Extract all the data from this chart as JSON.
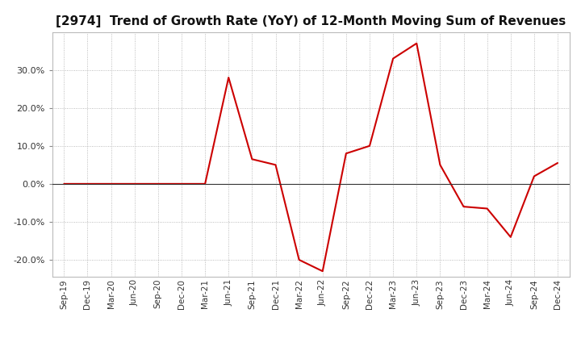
{
  "title": "[2974]  Trend of Growth Rate (YoY) of 12-Month Moving Sum of Revenues",
  "title_fontsize": 11,
  "line_color": "#cc0000",
  "background_color": "#ffffff",
  "plot_bg_color": "#ffffff",
  "grid_color": "#aaaaaa",
  "zero_line_color": "#333333",
  "labels": [
    "Sep-19",
    "Dec-19",
    "Mar-20",
    "Jun-20",
    "Sep-20",
    "Dec-20",
    "Mar-21",
    "Jun-21",
    "Sep-21",
    "Dec-21",
    "Mar-22",
    "Jun-22",
    "Sep-22",
    "Dec-22",
    "Mar-23",
    "Jun-23",
    "Sep-23",
    "Dec-23",
    "Mar-24",
    "Jun-24",
    "Sep-24",
    "Dec-24"
  ],
  "values": [
    0.0,
    0.0,
    0.0,
    0.0,
    0.0,
    0.0,
    0.0,
    0.28,
    0.065,
    0.05,
    -0.2,
    -0.23,
    0.08,
    0.1,
    0.33,
    0.37,
    0.05,
    -0.06,
    -0.065,
    -0.14,
    0.02,
    0.055
  ],
  "ylim": [
    -0.245,
    0.4
  ],
  "yticks": [
    -0.2,
    -0.1,
    0.0,
    0.1,
    0.2,
    0.3
  ]
}
